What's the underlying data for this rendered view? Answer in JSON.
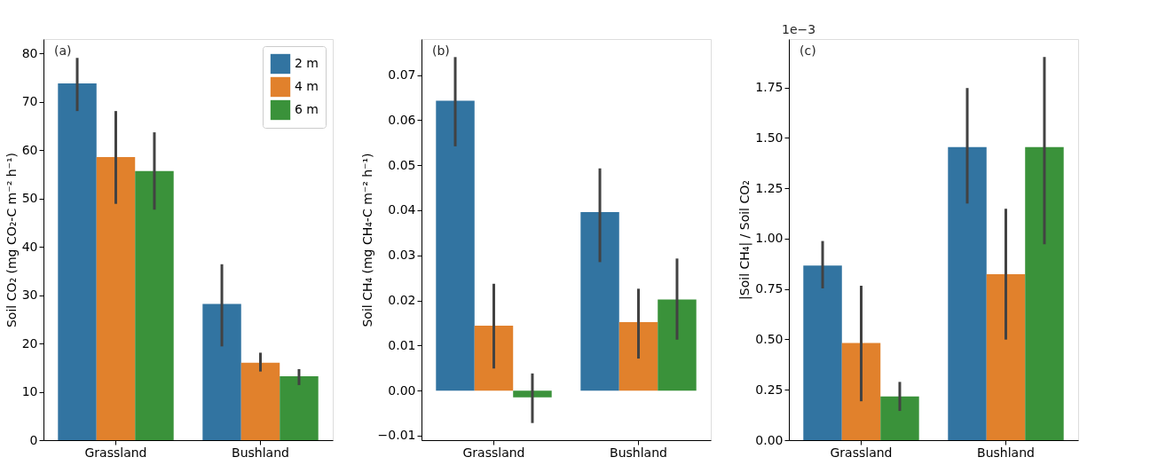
{
  "chart_data": [
    {
      "type": "bar",
      "ylabel": "Soil CO₂ (mg CO₂-C m⁻² h⁻¹)",
      "categories": [
        "Grassland",
        "Bushland"
      ],
      "ylim": [
        0,
        83
      ],
      "yticks": [
        0,
        10,
        20,
        30,
        40,
        50,
        60,
        70,
        80
      ],
      "grid": false,
      "legend": "top right",
      "annotations": [
        "(a)"
      ],
      "series": [
        {
          "name": "2 m",
          "color": "#3274a1",
          "values": [
            73.8,
            28.2
          ],
          "errors": [
            [
              68.1,
              79.1
            ],
            [
              19.4,
              36.4
            ]
          ]
        },
        {
          "name": "4 m",
          "color": "#e1812c",
          "values": [
            58.6,
            16.0
          ],
          "errors": [
            [
              48.9,
              68.1
            ],
            [
              14.2,
              18.1
            ]
          ]
        },
        {
          "name": "6 m",
          "color": "#3a923a",
          "values": [
            55.7,
            13.2
          ],
          "errors": [
            [
              47.7,
              63.7
            ],
            [
              11.4,
              14.7
            ]
          ]
        }
      ]
    },
    {
      "type": "bar",
      "ylabel": "Soil CH₄ (mg CH₄-C m⁻² h⁻¹)",
      "categories": [
        "Grassland",
        "Bushland"
      ],
      "ylim": [
        -0.011,
        0.078
      ],
      "yticks": [
        {
          "value": -0.01,
          "label": "−0.01"
        },
        {
          "value": 0,
          "label": "0.00"
        },
        0.01,
        0.02,
        0.03,
        0.04,
        0.05,
        0.06,
        0.07
      ],
      "grid": false,
      "annotations": [
        "(b)"
      ],
      "series": [
        {
          "name": "2 m",
          "color": "#3274a1",
          "values": [
            0.0643,
            0.0396
          ],
          "errors": [
            [
              0.0542,
              0.074
            ],
            [
              0.0285,
              0.0493
            ]
          ]
        },
        {
          "name": "4 m",
          "color": "#e1812c",
          "values": [
            0.0144,
            0.0152
          ],
          "errors": [
            [
              0.0049,
              0.0237
            ],
            [
              0.0071,
              0.0226
            ]
          ]
        },
        {
          "name": "6 m",
          "color": "#3a923a",
          "values": [
            -0.0015,
            0.0202
          ],
          "errors": [
            [
              -0.0072,
              0.0038
            ],
            [
              0.0113,
              0.0293
            ]
          ]
        }
      ]
    },
    {
      "type": "bar",
      "ylabel": "|Soil CH₄| / Soil CO₂",
      "categories": [
        "Grassland",
        "Bushland"
      ],
      "ylim": [
        0,
        1.99
      ],
      "yticks": [
        {
          "value": 0,
          "label": "0.00"
        },
        0.25,
        {
          "value": 0.5,
          "label": "0.50"
        },
        0.75,
        {
          "value": 1,
          "label": "1.00"
        },
        1.25,
        {
          "value": 1.5,
          "label": "1.50"
        },
        1.75
      ],
      "grid": false,
      "annotations": [
        "(c)",
        "1e−3"
      ],
      "series": [
        {
          "name": "2 m",
          "color": "#3274a1",
          "values": [
            0.866,
            1.454
          ],
          "errors": [
            [
              0.753,
              0.988
            ],
            [
              1.174,
              1.747
            ]
          ]
        },
        {
          "name": "4 m",
          "color": "#e1812c",
          "values": [
            0.482,
            0.823
          ],
          "errors": [
            [
              0.193,
              0.766
            ],
            [
              0.499,
              1.148
            ]
          ]
        },
        {
          "name": "6 m",
          "color": "#3a923a",
          "values": [
            0.217,
            1.454
          ],
          "errors": [
            [
              0.145,
              0.289
            ],
            [
              0.972,
              1.901
            ]
          ]
        }
      ]
    }
  ]
}
